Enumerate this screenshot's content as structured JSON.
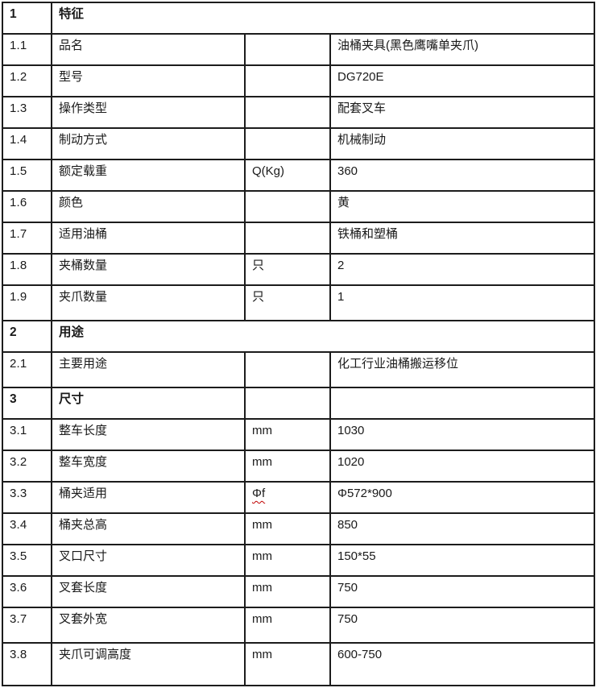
{
  "document": {
    "type": "specification-table",
    "product": "油桶夹具"
  },
  "colors": {
    "border": "#1c1c1c",
    "text": "#1a1a1a",
    "background": "#ffffff",
    "spellcheck_underline": "#c00000"
  },
  "table": {
    "columns": [
      "number",
      "name",
      "unit",
      "value"
    ],
    "rows": [
      {
        "num": "1",
        "name": "特征",
        "unit": "",
        "value": "",
        "section": true,
        "merged": true,
        "size": "default"
      },
      {
        "num": "1.1",
        "name": "品名",
        "unit": "",
        "value": "油桶夹具(黑色鹰嘴单夹爪)",
        "section": false,
        "merged": false,
        "size": "default"
      },
      {
        "num": "1.2",
        "name": "型号",
        "unit": "",
        "value": "DG720E",
        "section": false,
        "merged": false,
        "size": "default"
      },
      {
        "num": "1.3",
        "name": "操作类型",
        "unit": "",
        "value": "配套叉车",
        "section": false,
        "merged": false,
        "size": "default"
      },
      {
        "num": "1.4",
        "name": "制动方式",
        "unit": "",
        "value": "机械制动",
        "section": false,
        "merged": false,
        "size": "default"
      },
      {
        "num": "1.5",
        "name": "额定载重",
        "unit": "Q(Kg)",
        "value": "360",
        "section": false,
        "merged": false,
        "size": "default"
      },
      {
        "num": "1.6",
        "name": "颜色",
        "unit": "",
        "value": "黄",
        "section": false,
        "merged": false,
        "size": "default"
      },
      {
        "num": "1.7",
        "name": "适用油桶",
        "unit": "",
        "value": "铁桶和塑桶",
        "section": false,
        "merged": false,
        "size": "default"
      },
      {
        "num": "1.8",
        "name": "夹桶数量",
        "unit": "只",
        "value": "2",
        "section": false,
        "merged": false,
        "size": "default"
      },
      {
        "num": "1.9",
        "name": "夹爪数量",
        "unit": "只",
        "value": "1",
        "section": false,
        "merged": false,
        "size": "tall"
      },
      {
        "num": "2",
        "name": "用途",
        "unit": "",
        "value": "",
        "section": true,
        "merged": true,
        "size": "default"
      },
      {
        "num": "2.1",
        "name": "主要用途",
        "unit": "",
        "value": "化工行业油桶搬运移位",
        "section": false,
        "merged": false,
        "size": "tall"
      },
      {
        "num": "3",
        "name": "尺寸",
        "unit": "",
        "value": "",
        "section": true,
        "merged": false,
        "size": "default"
      },
      {
        "num": "3.1",
        "name": "整车长度",
        "unit": "mm",
        "value": "1030",
        "section": false,
        "merged": false,
        "size": "default"
      },
      {
        "num": "3.2",
        "name": "整车宽度",
        "unit": "mm",
        "value": "1020",
        "section": false,
        "merged": false,
        "size": "default"
      },
      {
        "num": "3.3",
        "name": "桶夹适用",
        "unit": "Φf",
        "value": "Φ572*900",
        "section": false,
        "merged": false,
        "size": "default",
        "unit_spellcheck": true
      },
      {
        "num": "3.4",
        "name": "桶夹总高",
        "unit": "mm",
        "value": "850",
        "section": false,
        "merged": false,
        "size": "default"
      },
      {
        "num": "3.5",
        "name": "叉口尺寸",
        "unit": "mm",
        "value": "150*55",
        "section": false,
        "merged": false,
        "size": "default"
      },
      {
        "num": "3.6",
        "name": "叉套长度",
        "unit": "mm",
        "value": "750",
        "section": false,
        "merged": false,
        "size": "default"
      },
      {
        "num": "3.7",
        "name": "叉套外宽",
        "unit": "mm",
        "value": "750",
        "section": false,
        "merged": false,
        "size": "tall"
      },
      {
        "num": "3.8",
        "name": "夹爪可调高度",
        "unit": "mm",
        "value": "600-750",
        "section": false,
        "merged": false,
        "size": "taller"
      }
    ]
  }
}
